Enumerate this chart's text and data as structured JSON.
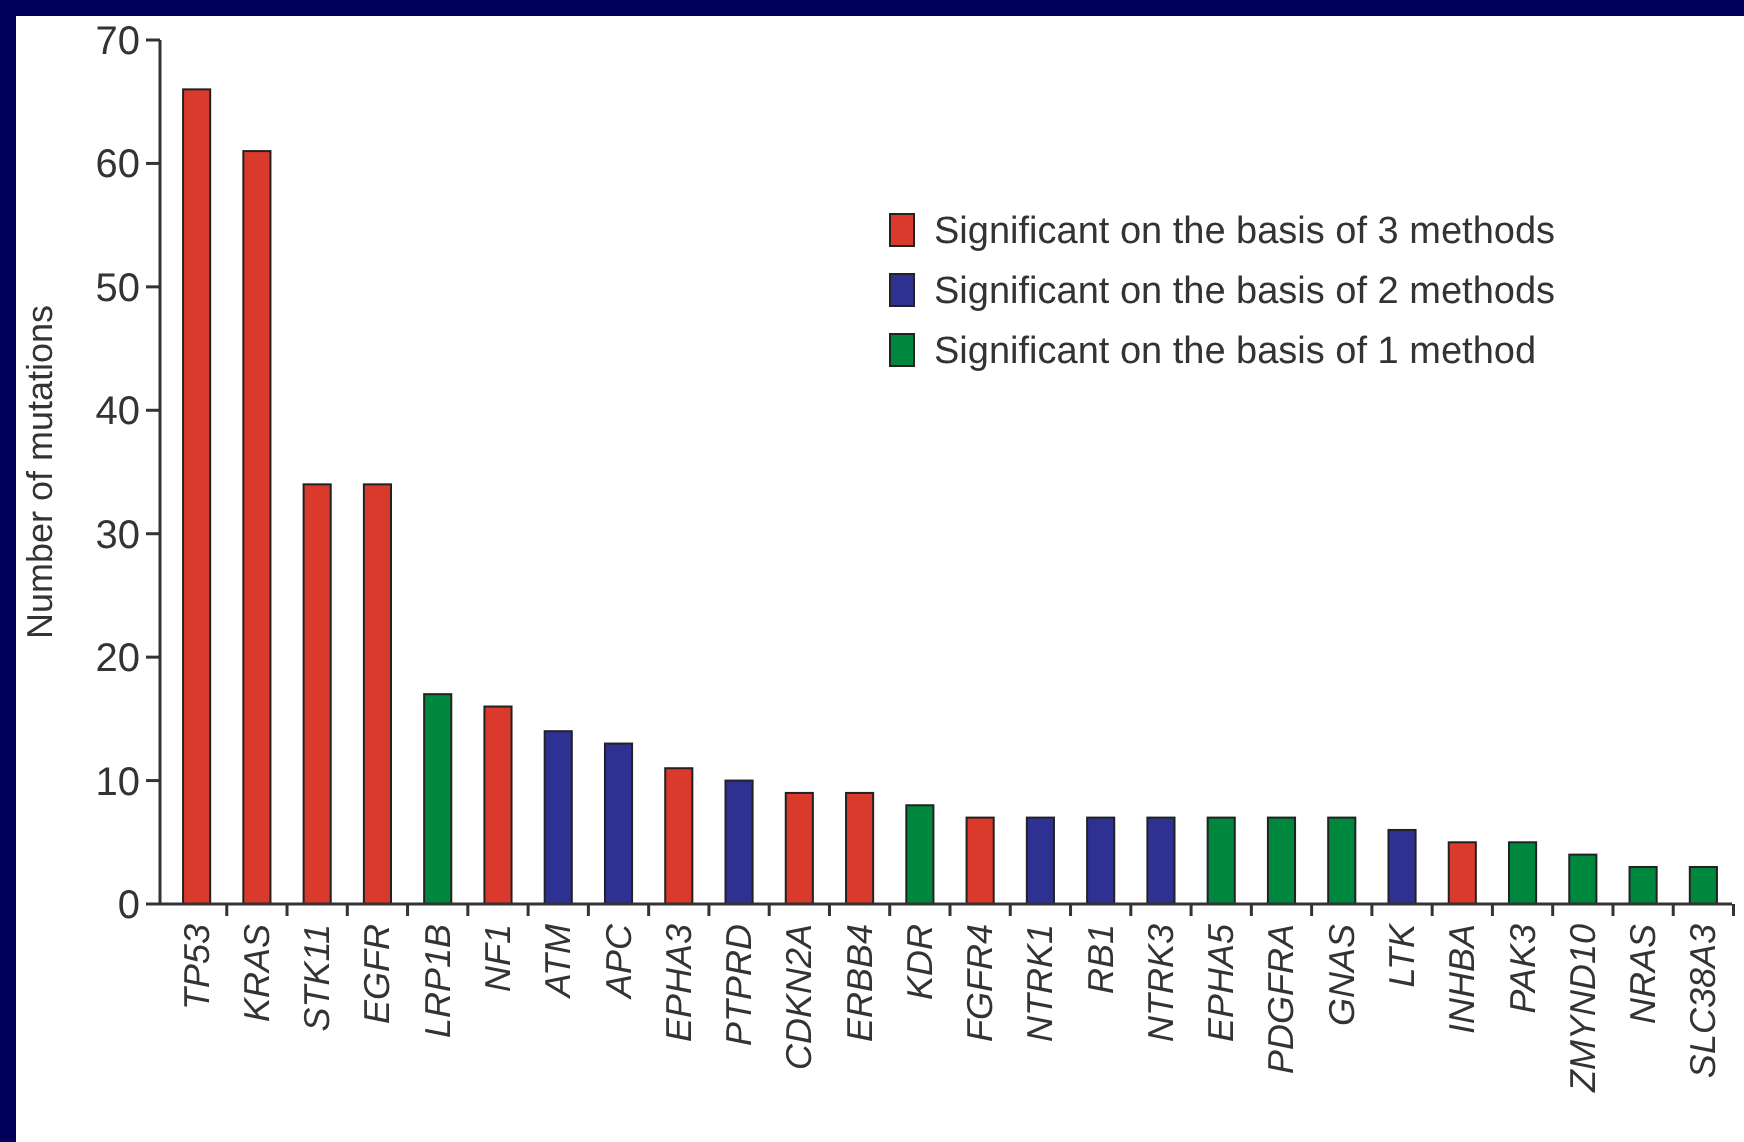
{
  "chart_data": {
    "type": "bar",
    "ylabel": "Number of mutations",
    "categories": [
      "TP53",
      "KRAS",
      "STK11",
      "EGFR",
      "LRP1B",
      "NF1",
      "ATM",
      "APC",
      "EPHA3",
      "PTPRD",
      "CDKN2A",
      "ERBB4",
      "KDR",
      "FGFR4",
      "NTRK1",
      "RB1",
      "NTRK3",
      "EPHA5",
      "PDGFRA",
      "GNAS",
      "LTK",
      "INHBA",
      "PAK3",
      "ZMYND10",
      "NRAS",
      "SLC38A3"
    ],
    "series": [
      {
        "name": "Significant on the basis of 3 methods",
        "color": "#d93a2b",
        "values": [
          66,
          61,
          34,
          34,
          null,
          16,
          null,
          null,
          11,
          null,
          9,
          9,
          null,
          7,
          null,
          null,
          null,
          null,
          null,
          null,
          null,
          5,
          null,
          null,
          null,
          null
        ]
      },
      {
        "name": "Significant on the basis of 2 methods",
        "color": "#2e3192",
        "values": [
          null,
          null,
          null,
          null,
          null,
          null,
          14,
          13,
          null,
          10,
          null,
          null,
          null,
          null,
          7,
          7,
          7,
          null,
          null,
          null,
          6,
          null,
          null,
          null,
          null,
          null
        ]
      },
      {
        "name": "Significant on the basis of 1 method",
        "color": "#00873e",
        "values": [
          null,
          null,
          null,
          null,
          17,
          null,
          null,
          null,
          null,
          null,
          null,
          null,
          8,
          null,
          null,
          null,
          null,
          7,
          7,
          7,
          null,
          null,
          5,
          4,
          3,
          3
        ]
      }
    ],
    "ylim": [
      0,
      70
    ],
    "yticks": [
      0,
      10,
      20,
      30,
      40,
      50,
      60,
      70
    ],
    "legend": "top right"
  }
}
